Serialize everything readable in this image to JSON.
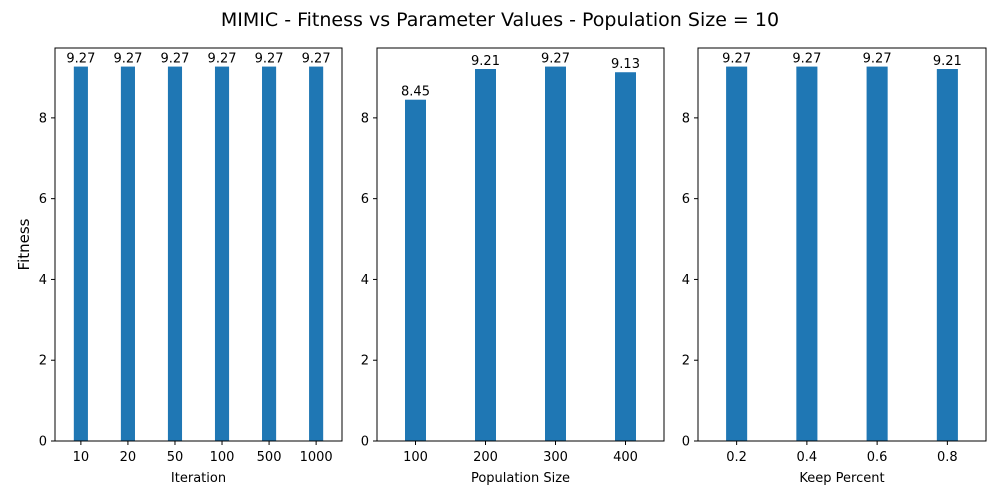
{
  "figure": {
    "title": "MIMIC - Fitness vs Parameter Values - Population Size = 10",
    "bar_color": "#1f77b4"
  },
  "chart_data": [
    {
      "type": "bar",
      "categories": [
        "10",
        "20",
        "50",
        "100",
        "500",
        "1000"
      ],
      "values": [
        9.27,
        9.27,
        9.27,
        9.27,
        9.27,
        9.27
      ],
      "data_labels": [
        "9.27",
        "9.27",
        "9.27",
        "9.27",
        "9.27",
        "9.27"
      ],
      "xlabel": "Iteration",
      "ylabel": "Fitness",
      "ylim": [
        0,
        9.73
      ],
      "yticks": [
        0,
        2,
        4,
        6,
        8
      ],
      "grid": false
    },
    {
      "type": "bar",
      "categories": [
        "100",
        "200",
        "300",
        "400"
      ],
      "values": [
        8.45,
        9.21,
        9.27,
        9.13
      ],
      "data_labels": [
        "8.45",
        "9.21",
        "9.27",
        "9.13"
      ],
      "xlabel": "Population Size",
      "ylabel": "",
      "ylim": [
        0,
        9.73
      ],
      "yticks": [
        0,
        2,
        4,
        6,
        8
      ],
      "grid": false
    },
    {
      "type": "bar",
      "categories": [
        "0.2",
        "0.4",
        "0.6",
        "0.8"
      ],
      "values": [
        9.27,
        9.27,
        9.27,
        9.21
      ],
      "data_labels": [
        "9.27",
        "9.27",
        "9.27",
        "9.21"
      ],
      "xlabel": "Keep Percent",
      "ylabel": "",
      "ylim": [
        0,
        9.73
      ],
      "yticks": [
        0,
        2,
        4,
        6,
        8
      ],
      "grid": false
    }
  ]
}
